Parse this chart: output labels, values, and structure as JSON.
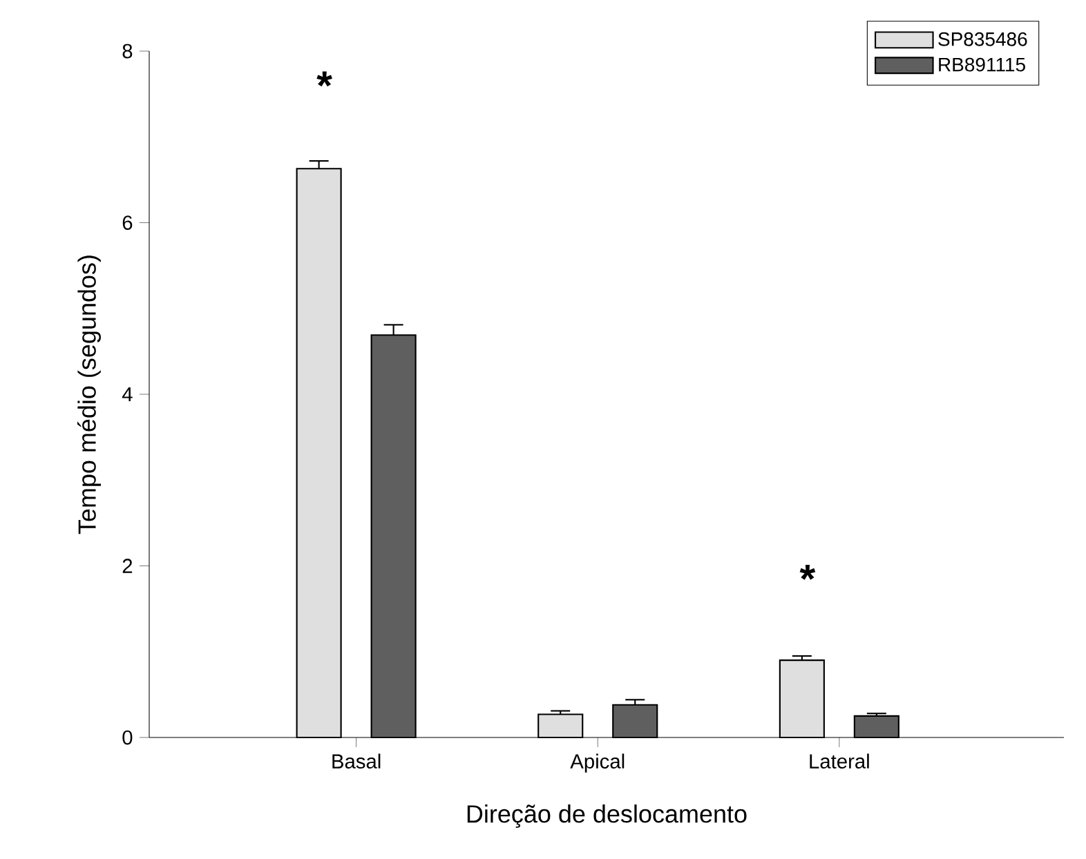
{
  "chart_data": {
    "type": "bar",
    "xlabel": "Direção de deslocamento",
    "ylabel": "Tempo médio (segundos)",
    "categories": [
      "Basal",
      "Apical",
      "Lateral"
    ],
    "series": [
      {
        "name": "SP835486",
        "color": "#dfdfdf",
        "values": [
          6.63,
          0.27,
          0.9
        ],
        "errors": [
          [
            6.63,
            6.72
          ],
          [
            0.27,
            0.31
          ],
          [
            0.9,
            0.95
          ]
        ]
      },
      {
        "name": "RB891115",
        "color": "#5f5f5f",
        "values": [
          4.69,
          0.38,
          0.25
        ],
        "errors": [
          [
            4.69,
            4.81
          ],
          [
            0.38,
            0.44
          ],
          [
            0.25,
            0.28
          ]
        ]
      }
    ],
    "ylim": [
      0,
      8
    ],
    "yticks": [
      0,
      2,
      4,
      6,
      8
    ],
    "legend": "top right",
    "annotations": [
      "*",
      "*"
    ]
  }
}
